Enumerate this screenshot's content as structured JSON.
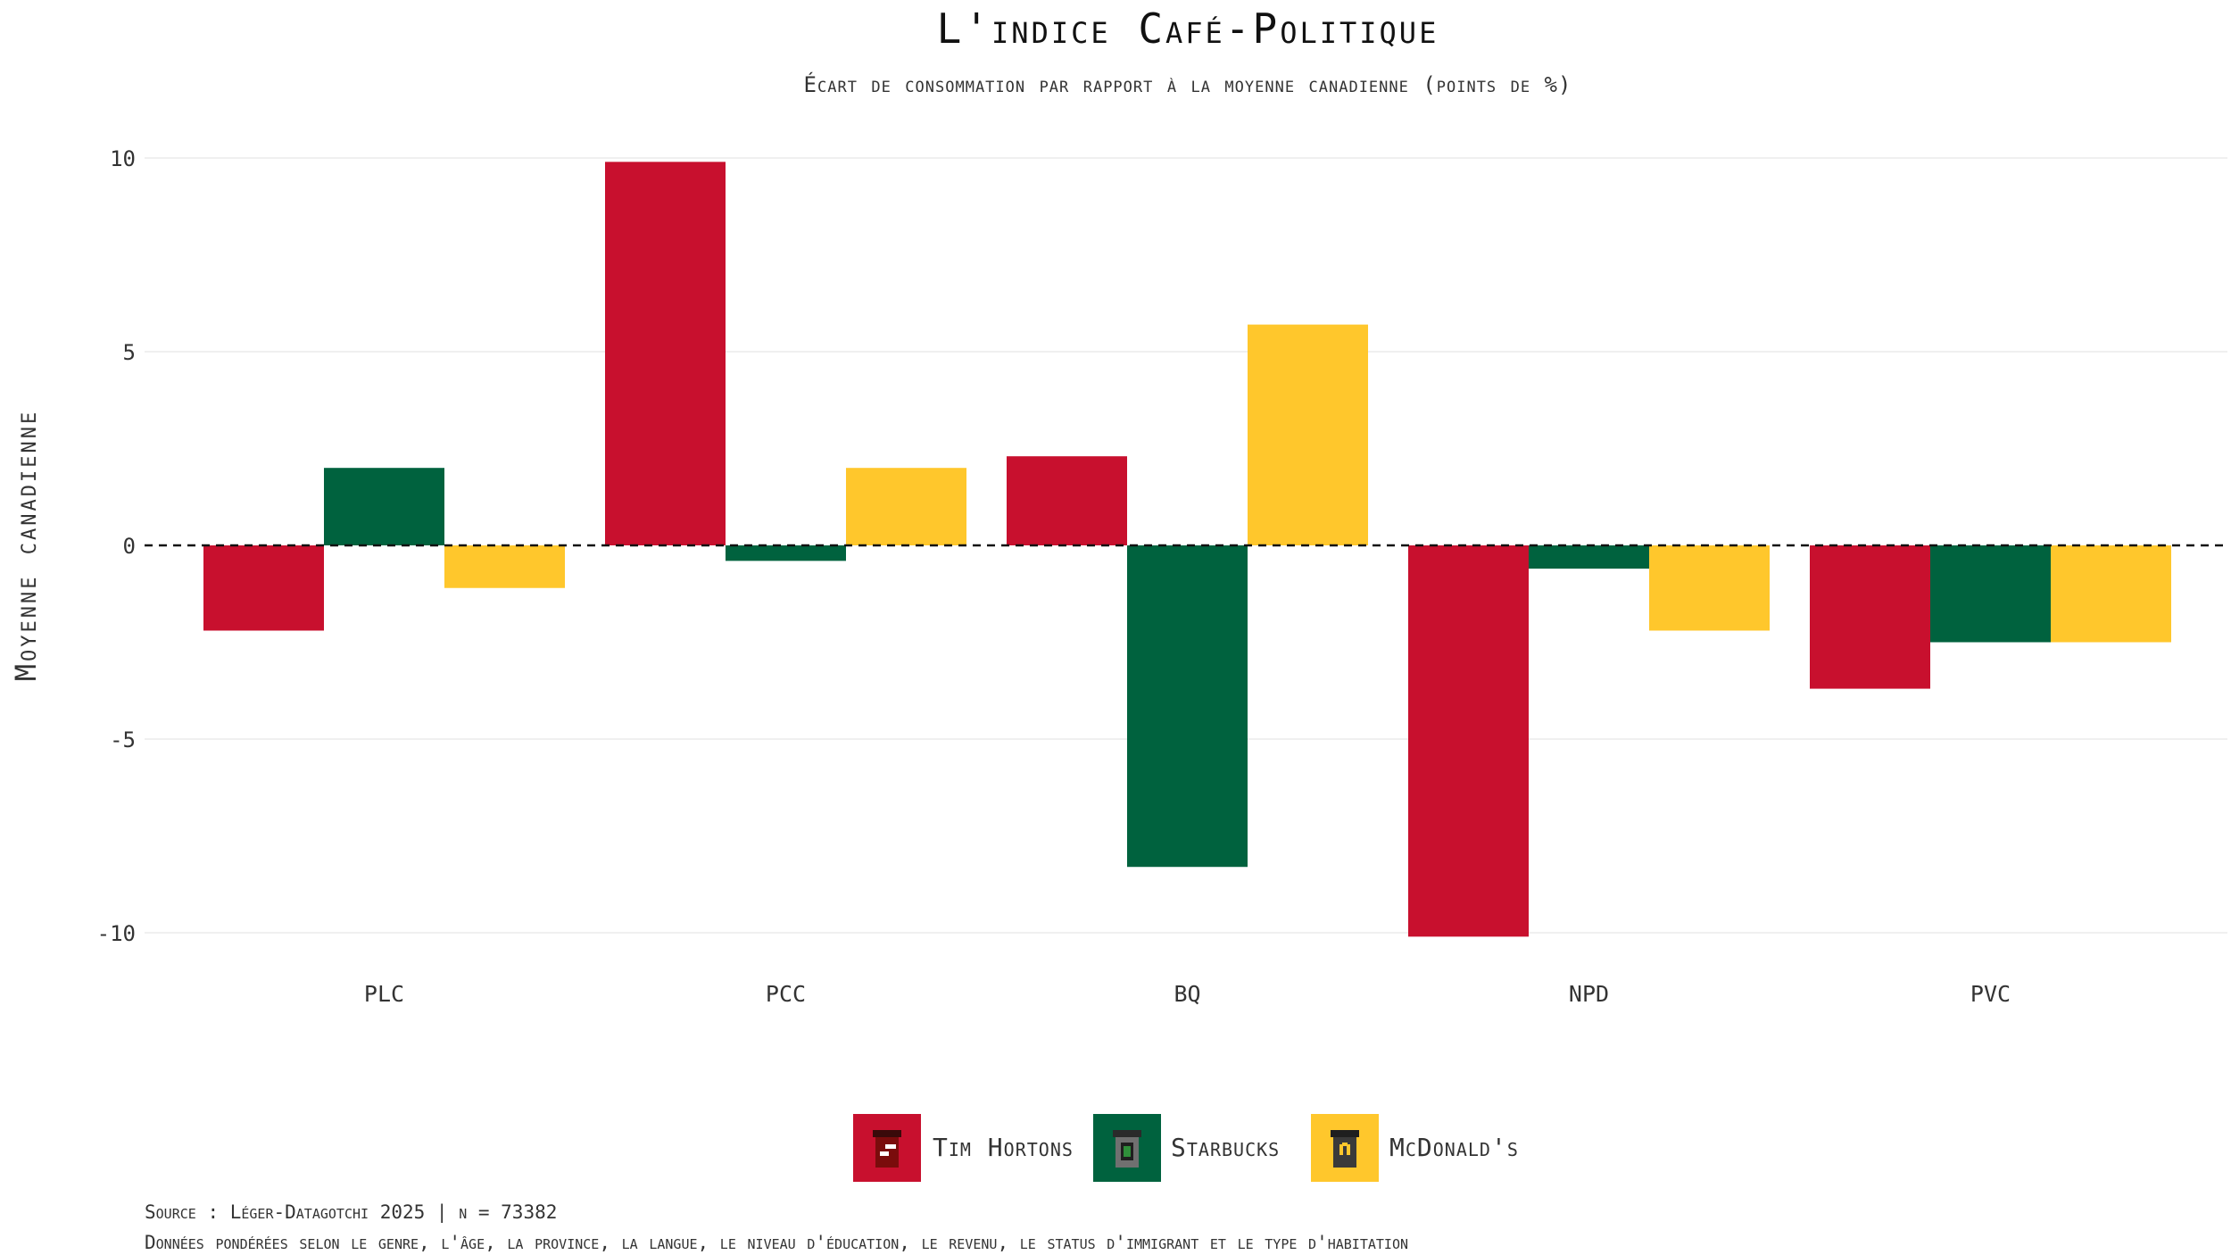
{
  "colors": {
    "background": "#ffffff",
    "grid": "#ececec",
    "text": "#333333"
  },
  "legend": {
    "items": [
      {
        "label": "Tim Hortons",
        "color": "#c8102e",
        "icon": "tim-hortons-cup-icon"
      },
      {
        "label": "Starbucks",
        "color": "#00623e",
        "icon": "starbucks-cup-icon"
      },
      {
        "label": "McDonald's",
        "color": "#ffc72c",
        "icon": "mcdonalds-cup-icon"
      }
    ]
  },
  "caption": {
    "source": "Source : Léger-Datagotchi 2025 | n = 73382",
    "note": "Données pondérées selon le genre, l'âge, la province, la langue, le niveau d'éducation, le revenu, le status d'immigrant et le type d'habitation"
  },
  "chart_data": {
    "type": "bar",
    "title": "L'indice Café-Politique",
    "subtitle": "Écart de consommation par rapport à la moyenne canadienne (points de %)",
    "xlabel": "",
    "ylabel": "Moyenne canadienne",
    "ylim": [
      -10.8,
      10.8
    ],
    "yticks": [
      10,
      5,
      0,
      -5,
      -10
    ],
    "grid": true,
    "reference_line": 0,
    "legend_position": "bottom",
    "categories": [
      "PLC",
      "PCC",
      "BQ",
      "NPD",
      "PVC"
    ],
    "series": [
      {
        "name": "Tim Hortons",
        "color": "#c8102e",
        "values": [
          -2.2,
          9.9,
          2.3,
          -10.1,
          -3.7
        ]
      },
      {
        "name": "Starbucks",
        "color": "#00623e",
        "values": [
          2.0,
          -0.4,
          -8.3,
          -0.6,
          -2.5
        ]
      },
      {
        "name": "McDonald's",
        "color": "#ffc72c",
        "values": [
          -1.1,
          2.0,
          5.7,
          -2.2,
          -2.5
        ]
      }
    ]
  }
}
